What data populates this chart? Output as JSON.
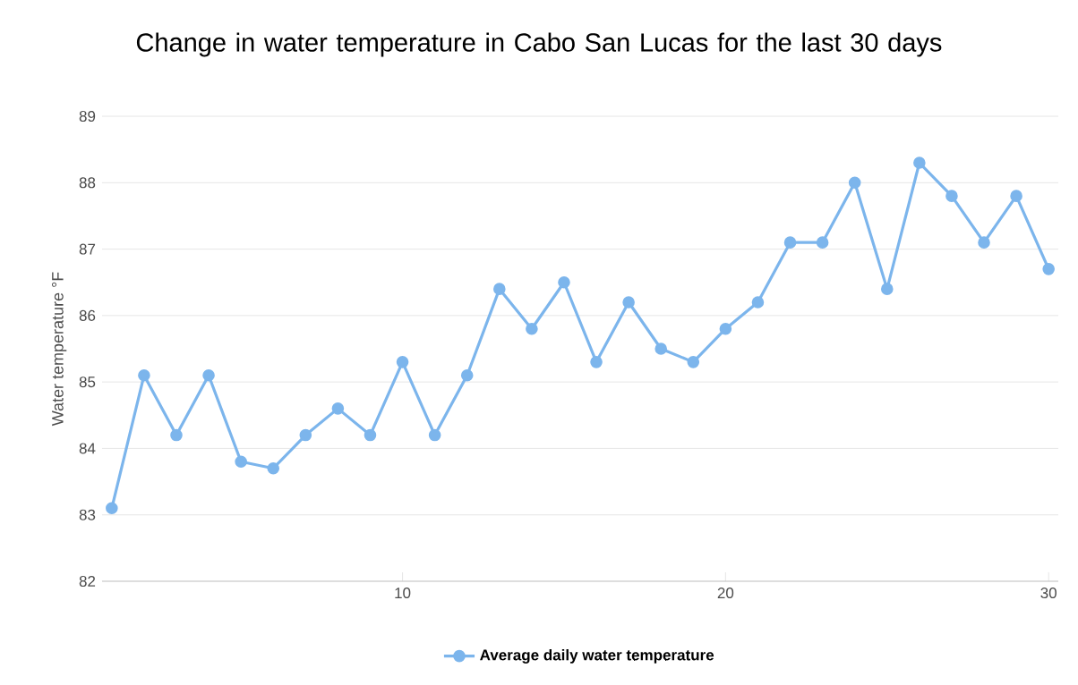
{
  "chart_data": {
    "type": "line",
    "title": "Change in water temperature in Cabo San Lucas for the last 30 days",
    "ylabel": "Water temperature °F",
    "x": [
      1,
      2,
      3,
      4,
      5,
      6,
      7,
      8,
      9,
      10,
      11,
      12,
      13,
      14,
      15,
      16,
      17,
      18,
      19,
      20,
      21,
      22,
      23,
      24,
      25,
      26,
      27,
      28,
      29,
      30
    ],
    "series": [
      {
        "name": "Average daily water temperature",
        "color": "#7cb5ec",
        "values": [
          83.1,
          85.1,
          84.2,
          85.1,
          83.8,
          83.7,
          84.2,
          84.6,
          84.2,
          85.3,
          84.2,
          85.1,
          86.4,
          85.8,
          86.5,
          85.3,
          86.2,
          85.5,
          85.3,
          85.8,
          86.2,
          87.1,
          87.1,
          88.0,
          86.4,
          88.3,
          87.8,
          87.1,
          87.8,
          86.7
        ]
      }
    ],
    "xlim": [
      0.7,
      30.3
    ],
    "xticks": [
      10,
      20,
      30
    ],
    "ylim": [
      82,
      89
    ],
    "yticks": [
      82,
      83,
      84,
      85,
      86,
      87,
      88,
      89
    ],
    "grid": "y",
    "legend": "bottom",
    "marker": "circle",
    "line_style": "solid"
  }
}
